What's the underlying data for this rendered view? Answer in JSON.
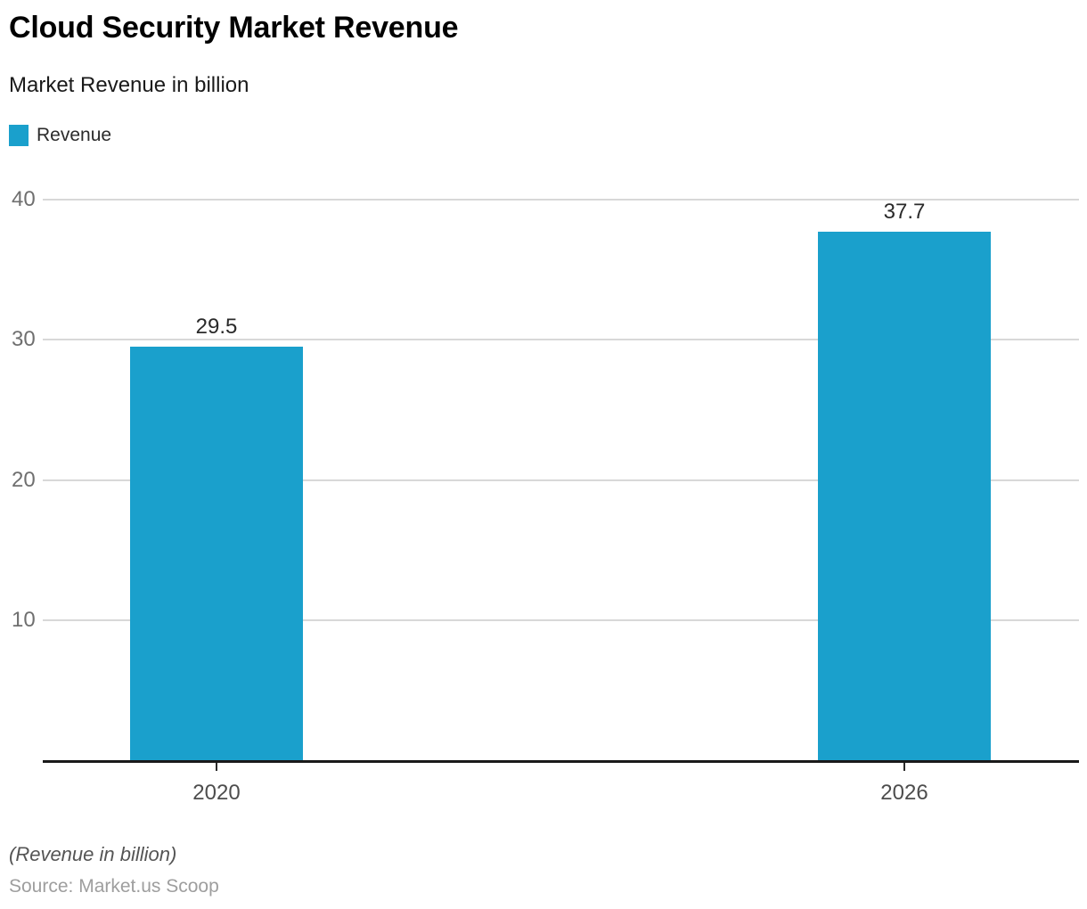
{
  "header": {
    "title": "Cloud Security Market Revenue",
    "subtitle": "Market Revenue in billion"
  },
  "legend": {
    "label": "Revenue",
    "color": "#1aa0cc"
  },
  "chart_data": {
    "type": "bar",
    "title": "Cloud Security Market Revenue",
    "subtitle": "Market Revenue in billion",
    "series_name": "Revenue",
    "categories": [
      "2020",
      "2026"
    ],
    "values": [
      29.5,
      37.7
    ],
    "value_labels": [
      "29.5",
      "37.7"
    ],
    "xlabel": "",
    "ylabel": "",
    "ylim": [
      0,
      40
    ],
    "yticks": [
      10,
      20,
      30,
      40
    ],
    "grid": true,
    "legend_position": "top-left",
    "bar_color": "#1aa0cc",
    "gridline_color": "#d8d8d8",
    "axis_color": "#1a1a1a"
  },
  "footer": {
    "note": "(Revenue in billion)",
    "source": "Source: Market.us Scoop"
  }
}
